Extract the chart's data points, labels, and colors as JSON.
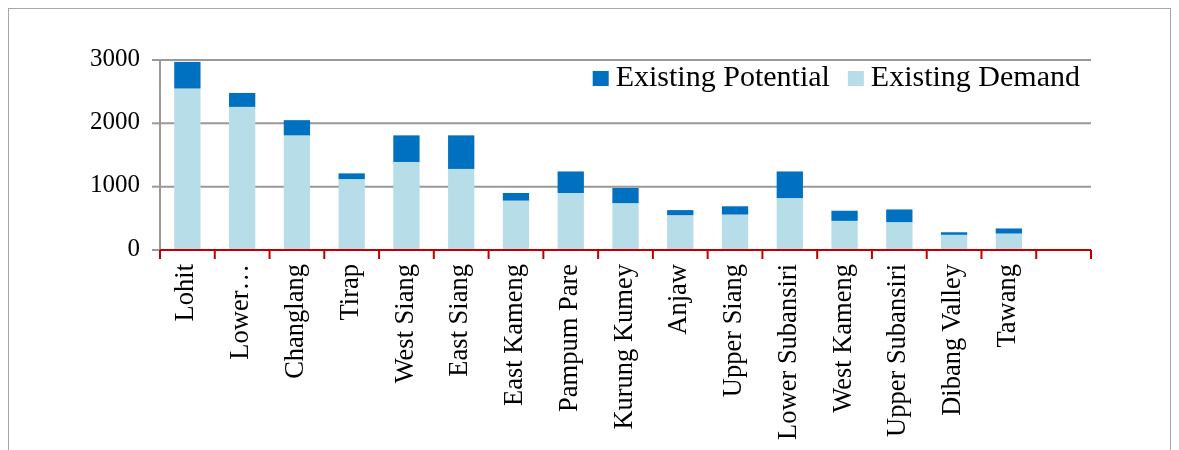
{
  "chart_data": {
    "type": "bar",
    "stacked": true,
    "categories": [
      "Lohit",
      "Lower…",
      "Changlang",
      "Tirap",
      "West Siang",
      "East Siang",
      "East Kameng",
      "Pampum Pare",
      "Kurung Kumey",
      "Anjaw",
      "Upper Siang",
      "Lower Subansiri",
      "West Kameng",
      "Upper Subansiri",
      "Dibang Valley",
      "Tawang",
      null
    ],
    "series": [
      {
        "name": "Existing Demand",
        "color": "#b7dde8",
        "values": [
          2550,
          2260,
          1810,
          1120,
          1390,
          1280,
          780,
          900,
          740,
          550,
          560,
          820,
          460,
          440,
          240,
          260,
          null
        ]
      },
      {
        "name": "Existing Potential",
        "color": "#0070c0",
        "values": [
          420,
          220,
          240,
          90,
          420,
          530,
          120,
          340,
          240,
          80,
          130,
          420,
          160,
          200,
          40,
          80,
          null
        ]
      }
    ],
    "ylim": [
      0,
      3000
    ],
    "yticks": [
      0,
      1000,
      2000,
      3000
    ],
    "grid": "y",
    "legend": "top right"
  }
}
